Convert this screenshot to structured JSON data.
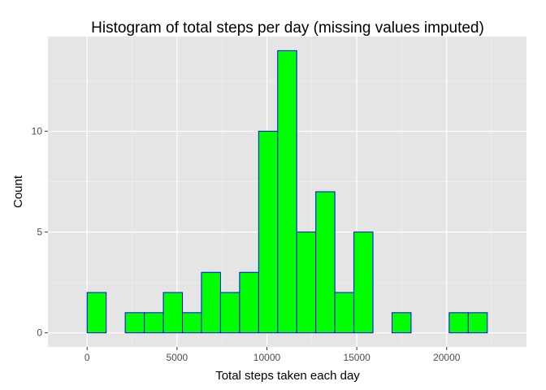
{
  "chart_data": {
    "type": "bar",
    "title": "Histogram of total steps per day (missing values imputed)",
    "xlabel": "Total steps taken each day",
    "ylabel": "Count",
    "bin_width": 1060,
    "bins": [
      {
        "start": -1060,
        "end": 0,
        "count": 0
      },
      {
        "start": 0,
        "end": 1060,
        "count": 2
      },
      {
        "start": 1060,
        "end": 2120,
        "count": 0
      },
      {
        "start": 2120,
        "end": 3180,
        "count": 1
      },
      {
        "start": 3180,
        "end": 4240,
        "count": 1
      },
      {
        "start": 4240,
        "end": 5300,
        "count": 2
      },
      {
        "start": 5300,
        "end": 6360,
        "count": 1
      },
      {
        "start": 6360,
        "end": 7420,
        "count": 3
      },
      {
        "start": 7420,
        "end": 8480,
        "count": 2
      },
      {
        "start": 8480,
        "end": 9540,
        "count": 3
      },
      {
        "start": 9540,
        "end": 10600,
        "count": 10
      },
      {
        "start": 10600,
        "end": 11660,
        "count": 14
      },
      {
        "start": 11660,
        "end": 12720,
        "count": 5
      },
      {
        "start": 12720,
        "end": 13780,
        "count": 7
      },
      {
        "start": 13780,
        "end": 14840,
        "count": 2
      },
      {
        "start": 14840,
        "end": 15900,
        "count": 5
      },
      {
        "start": 15900,
        "end": 16960,
        "count": 0
      },
      {
        "start": 16960,
        "end": 18020,
        "count": 1
      },
      {
        "start": 18020,
        "end": 19080,
        "count": 0
      },
      {
        "start": 19080,
        "end": 20140,
        "count": 0
      },
      {
        "start": 20140,
        "end": 21200,
        "count": 1
      },
      {
        "start": 21200,
        "end": 22260,
        "count": 1
      },
      {
        "start": 22260,
        "end": 23320,
        "count": 0
      }
    ],
    "xlim": [
      -2180,
      24440
    ],
    "ylim": [
      -0.7,
      14.7
    ],
    "x_ticks": [
      0,
      5000,
      10000,
      15000,
      20000
    ],
    "x_tick_labels": [
      "0",
      "5000",
      "10000",
      "15000",
      "20000"
    ],
    "y_ticks": [
      0,
      5,
      10
    ],
    "y_tick_labels": [
      "0",
      "5",
      "10"
    ],
    "grid": true,
    "legend": "none",
    "colors": {
      "fill": "#00ff00",
      "outline": "#0000ff",
      "panel": "#e5e5e5",
      "grid_major": "#ffffff",
      "grid_minor": "#f2f2f2",
      "tick_text": "#4d4d4d"
    }
  }
}
